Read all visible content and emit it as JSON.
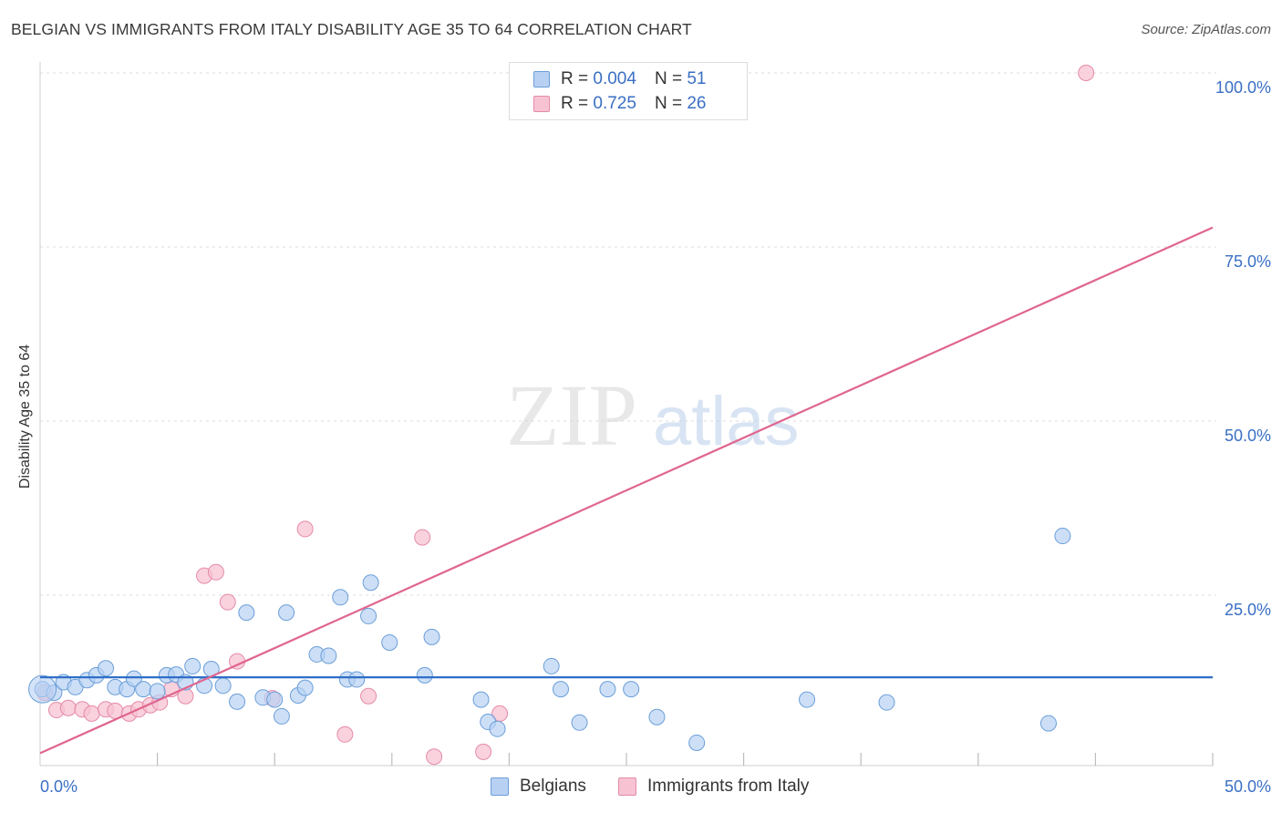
{
  "chart_data": {
    "type": "scatter",
    "title": "BELGIAN VS IMMIGRANTS FROM ITALY DISABILITY AGE 35 TO 64 CORRELATION CHART",
    "source": "Source: ZipAtlas.com",
    "xlabel": "",
    "ylabel": "Disability Age 35 to 64",
    "xlim": [
      0,
      50
    ],
    "ylim": [
      0,
      105
    ],
    "x_tick_labels": [
      "0.0%",
      "50.0%"
    ],
    "y_ticks": [
      25,
      50,
      75,
      100
    ],
    "y_tick_labels": [
      "25.0%",
      "50.0%",
      "75.0%",
      "100.0%"
    ],
    "grid": true,
    "watermark": {
      "zip": "ZIP",
      "atlas": "atlas"
    },
    "legend": {
      "r_label": "R =",
      "n_label": "N =",
      "entries": [
        {
          "name": "Belgians",
          "r": "0.004",
          "n": "51"
        },
        {
          "name": "Immigrants from Italy",
          "r": "0.725",
          "n": "26"
        }
      ]
    },
    "colors": {
      "belgians_fill": "#b8d1f3",
      "belgians_stroke": "#6a9ed8",
      "belgians_line": "#2f6fc7",
      "italy_fill": "#f7c3d3",
      "italy_stroke": "#e58aa8",
      "italy_line": "#e0658f"
    },
    "series": [
      {
        "name": "Belgians",
        "trend": {
          "x0": 0,
          "y0": 13.2,
          "x1": 50,
          "y1": 13.2
        },
        "points": [
          [
            0.1,
            11.5
          ],
          [
            0.6,
            11.0
          ],
          [
            1.0,
            12.5
          ],
          [
            1.5,
            11.8
          ],
          [
            2.0,
            12.8
          ],
          [
            2.4,
            13.5
          ],
          [
            2.8,
            14.5
          ],
          [
            3.2,
            11.8
          ],
          [
            3.7,
            11.5
          ],
          [
            4.0,
            13.0
          ],
          [
            4.4,
            11.5
          ],
          [
            5.0,
            11.2
          ],
          [
            5.4,
            13.5
          ],
          [
            5.8,
            13.6
          ],
          [
            6.2,
            12.5
          ],
          [
            6.5,
            14.8
          ],
          [
            7.0,
            12.0
          ],
          [
            7.3,
            14.4
          ],
          [
            7.8,
            12.0
          ],
          [
            8.4,
            9.7
          ],
          [
            8.8,
            22.5
          ],
          [
            9.5,
            10.3
          ],
          [
            10.0,
            10.0
          ],
          [
            10.3,
            7.6
          ],
          [
            10.5,
            22.5
          ],
          [
            11.0,
            10.6
          ],
          [
            11.3,
            11.7
          ],
          [
            11.8,
            16.5
          ],
          [
            12.3,
            16.3
          ],
          [
            12.8,
            24.7
          ],
          [
            13.1,
            12.9
          ],
          [
            13.5,
            12.9
          ],
          [
            14.0,
            22.0
          ],
          [
            14.1,
            26.8
          ],
          [
            14.9,
            18.2
          ],
          [
            16.4,
            13.5
          ],
          [
            16.7,
            19.0
          ],
          [
            18.8,
            10.0
          ],
          [
            19.1,
            6.8
          ],
          [
            19.5,
            5.8
          ],
          [
            21.8,
            14.8
          ],
          [
            22.2,
            11.5
          ],
          [
            23.0,
            6.7
          ],
          [
            24.2,
            11.5
          ],
          [
            25.2,
            11.5
          ],
          [
            26.3,
            7.5
          ],
          [
            28.0,
            3.8
          ],
          [
            32.7,
            10.0
          ],
          [
            36.1,
            9.6
          ],
          [
            43.0,
            6.6
          ],
          [
            43.6,
            33.5
          ]
        ]
      },
      {
        "name": "Immigrants from Italy",
        "trend": {
          "x0": 0,
          "y0": 2.3,
          "x1": 50,
          "y1": 77.8
        },
        "points": [
          [
            0.2,
            11.0
          ],
          [
            0.7,
            8.5
          ],
          [
            1.2,
            8.8
          ],
          [
            1.8,
            8.6
          ],
          [
            2.2,
            8.0
          ],
          [
            2.8,
            8.6
          ],
          [
            3.2,
            8.4
          ],
          [
            3.8,
            8.0
          ],
          [
            4.2,
            8.6
          ],
          [
            4.7,
            9.2
          ],
          [
            5.1,
            9.6
          ],
          [
            5.6,
            11.5
          ],
          [
            6.2,
            10.5
          ],
          [
            7.0,
            27.8
          ],
          [
            7.5,
            28.3
          ],
          [
            8.0,
            24.0
          ],
          [
            8.4,
            15.5
          ],
          [
            9.9,
            10.2
          ],
          [
            11.3,
            34.5
          ],
          [
            13.0,
            5.0
          ],
          [
            14.0,
            10.5
          ],
          [
            16.3,
            33.3
          ],
          [
            16.8,
            1.8
          ],
          [
            18.9,
            2.5
          ],
          [
            19.6,
            8.0
          ],
          [
            44.6,
            100.0
          ]
        ]
      }
    ]
  }
}
